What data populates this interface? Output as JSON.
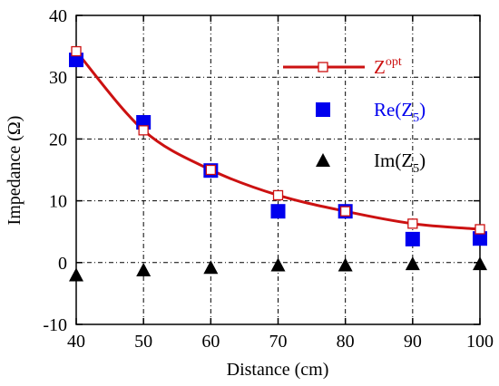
{
  "chart_data": {
    "type": "line",
    "xlabel": "Distance (cm)",
    "ylabel": "Impedance (Ω)",
    "xlim": [
      40,
      100
    ],
    "ylim": [
      -10,
      40
    ],
    "x_ticks": [
      40,
      50,
      60,
      70,
      80,
      90,
      100
    ],
    "y_ticks": [
      -10,
      0,
      10,
      20,
      30,
      40
    ],
    "grid": true,
    "legend_placement": "top-right",
    "x": [
      40,
      50,
      60,
      70,
      80,
      90,
      100
    ],
    "series": [
      {
        "key": "zopt",
        "name_main": "Z",
        "name_sup": "opt",
        "color": "#cc1111",
        "marker": "open-square",
        "line": true,
        "values": [
          34.2,
          21.4,
          15.0,
          10.9,
          8.3,
          6.3,
          5.4
        ]
      },
      {
        "key": "re",
        "name_main": "Re(Z",
        "name_sub": "5",
        "name_end": ")",
        "color": "#0000ee",
        "marker": "filled-square",
        "line": false,
        "values": [
          32.8,
          22.7,
          14.9,
          8.3,
          8.3,
          3.8,
          3.9
        ]
      },
      {
        "key": "im",
        "name_main": "Im(Z",
        "name_sub": "5",
        "name_end": ")",
        "color": "#000000",
        "marker": "filled-triangle",
        "line": false,
        "values": [
          -2.0,
          -1.2,
          -0.8,
          -0.4,
          -0.4,
          -0.2,
          -0.2
        ]
      }
    ]
  }
}
